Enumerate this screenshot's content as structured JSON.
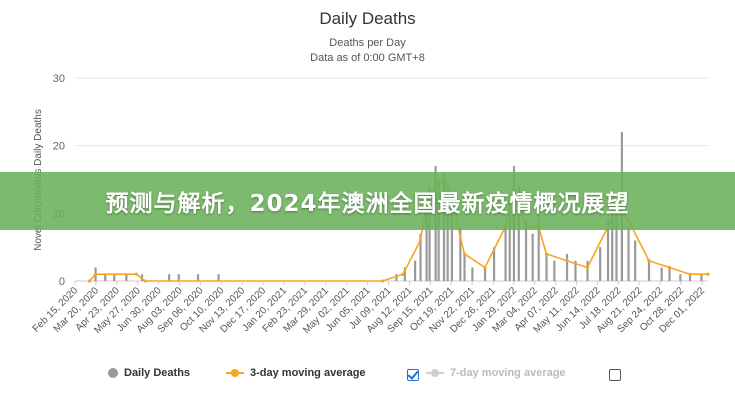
{
  "banner": {
    "text": "预测与解析，2024年澳洲全国最新疫情概况展望"
  },
  "chart_data": {
    "type": "bar",
    "title": "Daily Deaths",
    "subtitle": "Deaths per Day",
    "subtitle2": "Data as of 0:00 GMT+8",
    "ylabel": "Novel Coronavirus Daily Deaths",
    "ylim": [
      0,
      30
    ],
    "yticks": [
      0,
      10,
      20,
      30
    ],
    "grid": true,
    "legend_position": "bottom",
    "xlim": [
      "2020-02-15",
      "2022-12-31"
    ],
    "xticks": [
      "Feb 15, 2020",
      "Mar 20, 2020",
      "Apr 23, 2020",
      "May 27, 2020",
      "Jun 30, 2020",
      "Aug 03, 2020",
      "Sep 06, 2020",
      "Oct 10, 2020",
      "Nov 13, 2020",
      "Dec 17, 2020",
      "Jan 20, 2021",
      "Feb 23, 2021",
      "Mar 29, 2021",
      "May 02, 2021",
      "Jun 05, 2021",
      "Jul 09, 2021",
      "Aug 12, 2021",
      "Sep 15, 2021",
      "Oct 19, 2021",
      "Nov 22, 2021",
      "Dec 26, 2021",
      "Jan 29, 2022",
      "Mar 04, 2022",
      "Apr 07, 2022",
      "May 11, 2022",
      "Jun 14, 2022",
      "Jul 18, 2022",
      "Aug 21, 2022",
      "Sep 24, 2022",
      "Oct 28, 2022",
      "Dec 01, 2022"
    ],
    "series": [
      {
        "name": "Daily Deaths",
        "kind": "bar",
        "color": "#9a9a9a",
        "points": [
          [
            "2020-03-20",
            2
          ],
          [
            "2020-04-05",
            1
          ],
          [
            "2020-04-20",
            1
          ],
          [
            "2020-05-10",
            1
          ],
          [
            "2020-06-05",
            1
          ],
          [
            "2020-07-20",
            1
          ],
          [
            "2020-08-05",
            1
          ],
          [
            "2020-09-06",
            1
          ],
          [
            "2020-10-10",
            1
          ],
          [
            "2021-08-01",
            1
          ],
          [
            "2021-08-15",
            2
          ],
          [
            "2021-09-01",
            3
          ],
          [
            "2021-09-10",
            7
          ],
          [
            "2021-09-20",
            11
          ],
          [
            "2021-09-25",
            14
          ],
          [
            "2021-10-05",
            17
          ],
          [
            "2021-10-10",
            15
          ],
          [
            "2021-10-19",
            16
          ],
          [
            "2021-10-25",
            14
          ],
          [
            "2021-11-01",
            13
          ],
          [
            "2021-11-15",
            8
          ],
          [
            "2021-11-22",
            4
          ],
          [
            "2021-12-05",
            2
          ],
          [
            "2021-12-26",
            2
          ],
          [
            "2022-01-10",
            5
          ],
          [
            "2022-01-29",
            8
          ],
          [
            "2022-02-05",
            12
          ],
          [
            "2022-02-12",
            17
          ],
          [
            "2022-02-20",
            14
          ],
          [
            "2022-03-04",
            9
          ],
          [
            "2022-03-15",
            7
          ],
          [
            "2022-03-25",
            10
          ],
          [
            "2022-04-07",
            4
          ],
          [
            "2022-04-20",
            3
          ],
          [
            "2022-05-11",
            4
          ],
          [
            "2022-05-25",
            3
          ],
          [
            "2022-06-14",
            3
          ],
          [
            "2022-07-05",
            5
          ],
          [
            "2022-07-18",
            9
          ],
          [
            "2022-07-25",
            11
          ],
          [
            "2022-08-01",
            12
          ],
          [
            "2022-08-10",
            22
          ],
          [
            "2022-08-21",
            8
          ],
          [
            "2022-09-01",
            6
          ],
          [
            "2022-09-24",
            3
          ],
          [
            "2022-10-15",
            2
          ],
          [
            "2022-10-28",
            2
          ],
          [
            "2022-11-15",
            1
          ],
          [
            "2022-12-01",
            1
          ],
          [
            "2022-12-20",
            1
          ]
        ]
      },
      {
        "name": "3-day moving average",
        "kind": "line",
        "color": "#f5a623",
        "points": [
          [
            "2020-03-10",
            0
          ],
          [
            "2020-03-20",
            1
          ],
          [
            "2020-05-27",
            1
          ],
          [
            "2020-06-10",
            0
          ],
          [
            "2021-07-09",
            0
          ],
          [
            "2021-08-12",
            1
          ],
          [
            "2021-09-10",
            6
          ],
          [
            "2021-09-20",
            11
          ],
          [
            "2021-10-05",
            14
          ],
          [
            "2021-10-19",
            15
          ],
          [
            "2021-11-01",
            12
          ],
          [
            "2021-11-22",
            4
          ],
          [
            "2021-12-26",
            2
          ],
          [
            "2022-01-29",
            8
          ],
          [
            "2022-02-12",
            14
          ],
          [
            "2022-03-04",
            8
          ],
          [
            "2022-03-25",
            8
          ],
          [
            "2022-04-07",
            4
          ],
          [
            "2022-05-11",
            3
          ],
          [
            "2022-06-14",
            2
          ],
          [
            "2022-07-18",
            8
          ],
          [
            "2022-08-01",
            11
          ],
          [
            "2022-08-21",
            9
          ],
          [
            "2022-09-24",
            3
          ],
          [
            "2022-10-28",
            2
          ],
          [
            "2022-12-01",
            1
          ],
          [
            "2022-12-31",
            1
          ]
        ]
      }
    ],
    "legend": [
      {
        "label": "Daily Deaths",
        "checked": true
      },
      {
        "label": "3-day moving average",
        "checked": true
      },
      {
        "label": "7-day moving average",
        "checked": false
      }
    ]
  }
}
